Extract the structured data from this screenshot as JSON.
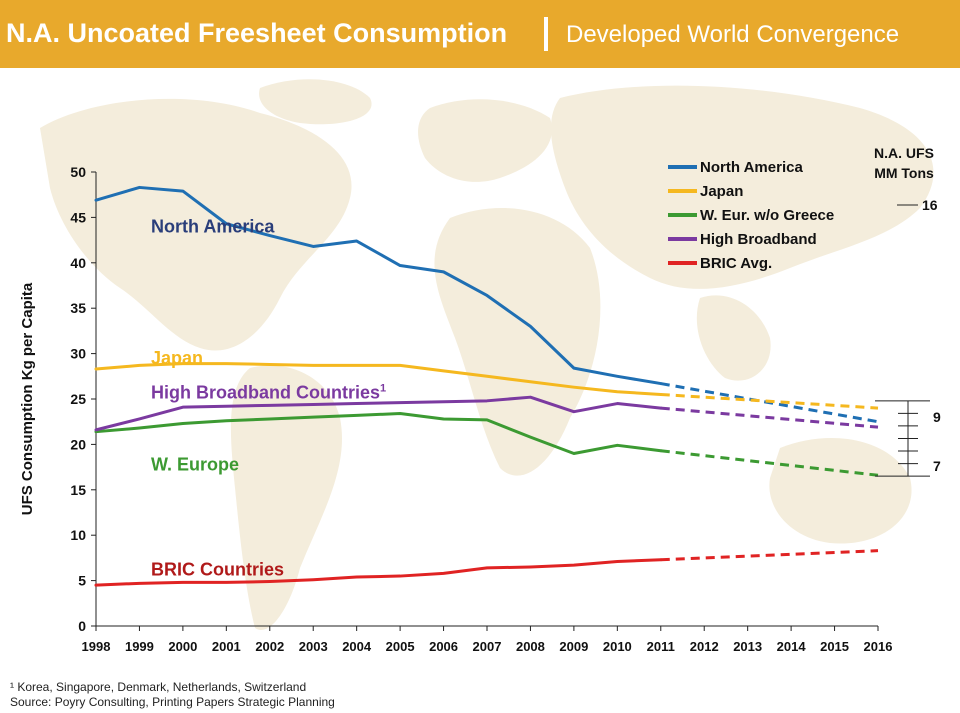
{
  "header": {
    "title": "N.A. Uncoated Freesheet Consumption",
    "subtitle": "Developed World Convergence",
    "bg_color": "#e8a92c"
  },
  "chart_data": {
    "type": "line",
    "ylabel": "UFS Consumption Kg per Capita",
    "ylim": [
      0,
      50
    ],
    "yticks": [
      0,
      5,
      10,
      15,
      20,
      25,
      30,
      35,
      40,
      45,
      50
    ],
    "x": [
      1998,
      1999,
      2000,
      2001,
      2002,
      2003,
      2004,
      2005,
      2006,
      2007,
      2008,
      2009,
      2010,
      2011,
      2012,
      2013,
      2014,
      2015,
      2016
    ],
    "actual_through": 2011,
    "forecast_style": "dashed",
    "series": [
      {
        "name": "North America",
        "label": "North America",
        "color": "#1f6fb3",
        "actual": [
          46.9,
          48.3,
          47.9,
          44.3,
          43.0,
          41.8,
          42.4,
          39.7,
          39.0,
          36.4,
          33.0,
          28.4,
          27.5,
          26.7
        ],
        "forecast": [
          [
            2011,
            26.7
          ],
          [
            2016,
            22.5
          ]
        ]
      },
      {
        "name": "Japan",
        "label": "Japan",
        "color": "#f5b81f",
        "actual": [
          28.3,
          28.7,
          28.9,
          28.9,
          28.8,
          28.7,
          28.7,
          28.7,
          28.1,
          27.5,
          26.9,
          26.3,
          25.8,
          25.5
        ],
        "forecast": [
          [
            2011,
            25.5
          ],
          [
            2016,
            24.0
          ]
        ]
      },
      {
        "name": "W. Eur. w/o Greece",
        "label": "W. Europe",
        "color": "#3c9a32",
        "actual": [
          21.4,
          21.8,
          22.3,
          22.6,
          22.8,
          23.0,
          23.2,
          23.4,
          22.8,
          22.7,
          20.8,
          19.0,
          19.9,
          19.3
        ],
        "forecast": [
          [
            2011,
            19.3
          ],
          [
            2016,
            16.6
          ]
        ]
      },
      {
        "name": "High Broadband",
        "label": "High Broadband Countries",
        "label_superscript": "1",
        "color": "#7b3aa0",
        "actual": [
          21.6,
          22.8,
          24.1,
          24.2,
          24.3,
          24.4,
          24.5,
          24.6,
          24.7,
          24.8,
          25.2,
          23.6,
          24.5,
          24.0
        ],
        "forecast": [
          [
            2011,
            24.0
          ],
          [
            2016,
            21.9
          ]
        ]
      },
      {
        "name": "BRIC Avg.",
        "label": "BRIC Countries",
        "color": "#e02323",
        "actual": [
          4.5,
          4.7,
          4.8,
          4.8,
          4.9,
          5.1,
          5.4,
          5.5,
          5.8,
          6.4,
          6.5,
          6.7,
          7.1,
          7.3
        ],
        "forecast": [
          [
            2011,
            7.3
          ],
          [
            2016,
            8.3
          ]
        ]
      }
    ],
    "legend_position": "top-right",
    "scale_annotation": {
      "title_line1": "N.A. UFS",
      "title_line2": "MM Tons",
      "legend_value": "16",
      "upper_value": "9",
      "lower_value": "7"
    }
  },
  "footnotes": {
    "line1": "¹ Korea, Singapore, Denmark, Netherlands, Switzerland",
    "line2": "Source: Poyry Consulting, Printing Papers Strategic Planning"
  }
}
